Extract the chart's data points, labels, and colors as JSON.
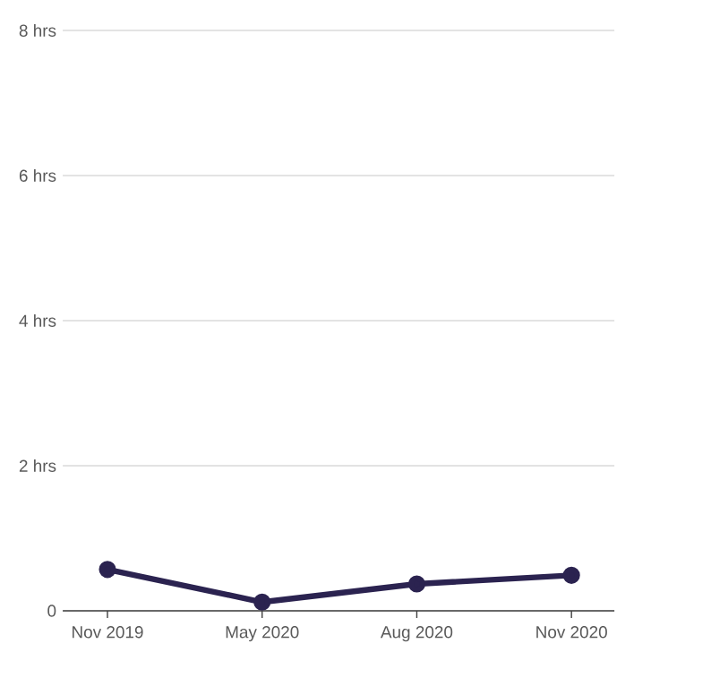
{
  "chart_data": {
    "type": "line",
    "categories": [
      "Nov 2019",
      "May 2020",
      "Aug 2020",
      "Nov 2020"
    ],
    "values": [
      0.57,
      0.12,
      0.37,
      0.49
    ],
    "color": "#2b2350",
    "ylim": [
      0,
      8
    ],
    "yticks": [
      0,
      {
        "value": 2,
        "label": "2 hrs"
      },
      {
        "value": 4,
        "label": "4 hrs"
      },
      {
        "value": 6,
        "label": "6 hrs"
      },
      {
        "value": 8,
        "label": "8 hrs"
      }
    ],
    "grid": "y",
    "marker": "circle"
  }
}
